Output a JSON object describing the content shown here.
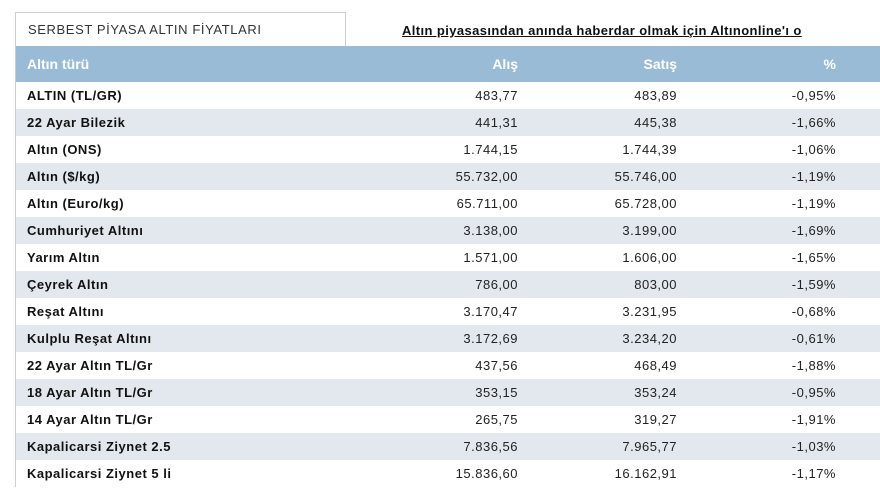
{
  "tab": {
    "title": "SERBEST PİYASA ALTIN FİYATLARI"
  },
  "promo": {
    "text": "Altın piyasasından anında haberdar olmak için Altınonline'ı o"
  },
  "table": {
    "headers": {
      "name": "Altın türü",
      "buy": "Alış",
      "sell": "Satış",
      "pct": "%"
    },
    "rows": [
      {
        "name": "ALTIN (TL/GR)",
        "buy": "483,77",
        "sell": "483,89",
        "pct": "-0,95%"
      },
      {
        "name": "22 Ayar Bilezik",
        "buy": "441,31",
        "sell": "445,38",
        "pct": "-1,66%"
      },
      {
        "name": "Altın (ONS)",
        "buy": "1.744,15",
        "sell": "1.744,39",
        "pct": "-1,06%"
      },
      {
        "name": "Altın ($/kg)",
        "buy": "55.732,00",
        "sell": "55.746,00",
        "pct": "-1,19%"
      },
      {
        "name": "Altın (Euro/kg)",
        "buy": "65.711,00",
        "sell": "65.728,00",
        "pct": "-1,19%"
      },
      {
        "name": "Cumhuriyet Altını",
        "buy": "3.138,00",
        "sell": "3.199,00",
        "pct": "-1,69%"
      },
      {
        "name": "Yarım Altın",
        "buy": "1.571,00",
        "sell": "1.606,00",
        "pct": "-1,65%"
      },
      {
        "name": "Çeyrek Altın",
        "buy": "786,00",
        "sell": "803,00",
        "pct": "-1,59%"
      },
      {
        "name": "Reşat Altını",
        "buy": "3.170,47",
        "sell": "3.231,95",
        "pct": "-0,68%"
      },
      {
        "name": "Kulplu Reşat Altını",
        "buy": "3.172,69",
        "sell": "3.234,20",
        "pct": "-0,61%"
      },
      {
        "name": "22 Ayar Altın TL/Gr",
        "buy": "437,56",
        "sell": "468,49",
        "pct": "-1,88%"
      },
      {
        "name": "18 Ayar Altın TL/Gr",
        "buy": "353,15",
        "sell": "353,24",
        "pct": "-0,95%"
      },
      {
        "name": "14 Ayar Altın TL/Gr",
        "buy": "265,75",
        "sell": "319,27",
        "pct": "-1,91%"
      },
      {
        "name": "Kapalicarsi Ziynet 2.5",
        "buy": "7.836,56",
        "sell": "7.965,77",
        "pct": "-1,03%"
      },
      {
        "name": "Kapalicarsi Ziynet 5 li",
        "buy": "15.836,60",
        "sell": "16.162,91",
        "pct": "-1,17%"
      }
    ]
  },
  "colors": {
    "header_bg": "#99bbd6",
    "alt_row_bg": "#e2e8ee"
  }
}
